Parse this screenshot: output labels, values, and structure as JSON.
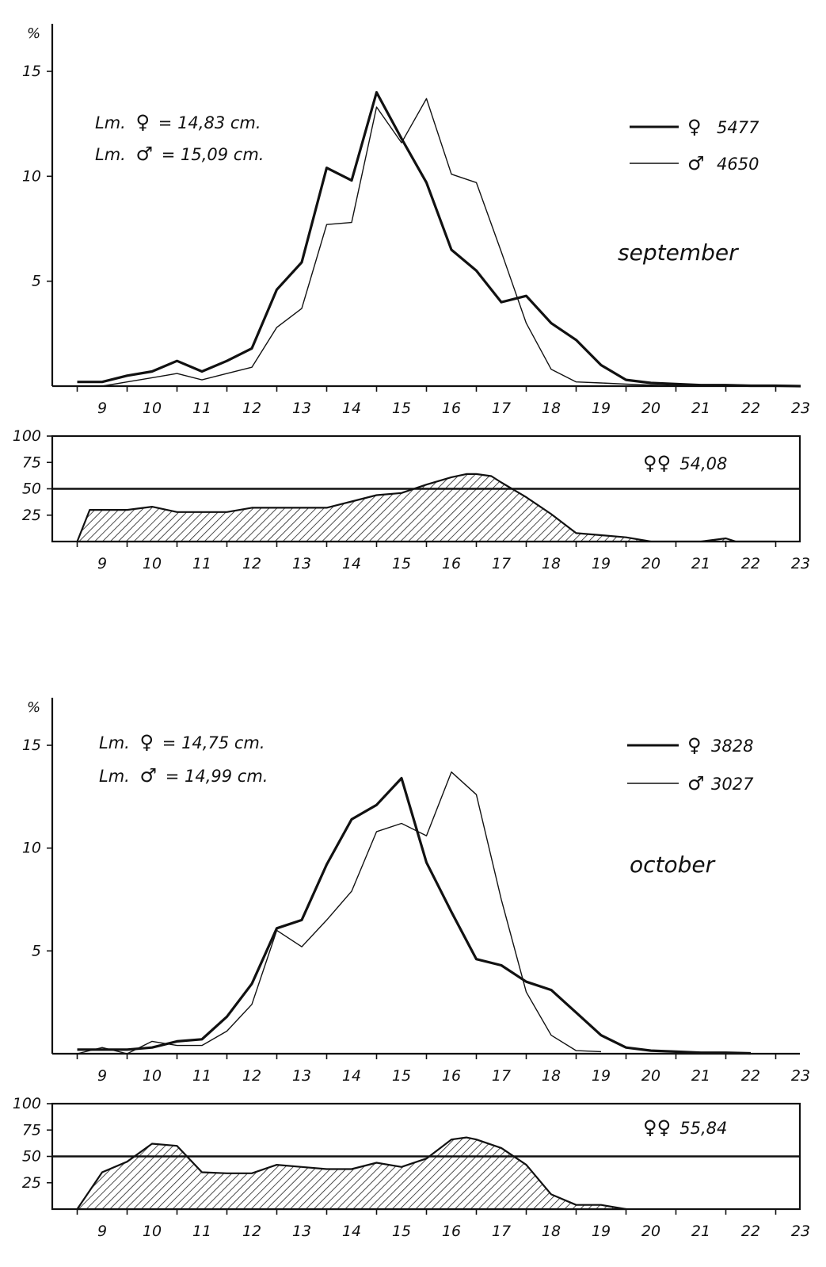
{
  "chart_data": [
    {
      "type": "line",
      "title": "",
      "month_label": "september",
      "ylabel": "%",
      "xlabel": "",
      "ylim": [
        0,
        15
      ],
      "xlim": [
        8,
        23
      ],
      "y_ticks": [
        "5",
        "10",
        "15"
      ],
      "x_ticks": [
        "9",
        "10",
        "11",
        "12",
        "13",
        "14",
        "15",
        "16",
        "17",
        "18",
        "19",
        "20",
        "21",
        "22",
        "23"
      ],
      "notes": [
        {
          "prefix": "Lm.",
          "symbol": "♀",
          "text": "= 14,83 cm."
        },
        {
          "prefix": "Lm.",
          "symbol": "♂",
          "text": "= 15,09 cm."
        }
      ],
      "legend": [
        {
          "symbol": "♀",
          "count": "5477",
          "style": "thick"
        },
        {
          "symbol": "♂",
          "count": "4650",
          "style": "thin"
        }
      ],
      "series": [
        {
          "style": "thick",
          "x": [
            8.5,
            9,
            9.5,
            10,
            10.5,
            11,
            11.5,
            12,
            12.5,
            13,
            13.5,
            14,
            14.5,
            15,
            15.5,
            16,
            16.5,
            17,
            17.5,
            18,
            18.5,
            19,
            19.5,
            20,
            20.5,
            21,
            21.5,
            22,
            22.5,
            23
          ],
          "y": [
            0.2,
            0.2,
            0.5,
            0.7,
            1.2,
            0.7,
            1.2,
            1.8,
            4.6,
            5.9,
            10.4,
            9.8,
            14.0,
            11.8,
            9.7,
            6.5,
            5.5,
            4.0,
            4.3,
            3.0,
            2.2,
            1.0,
            0.3,
            0.15,
            0.1,
            0.05,
            0.05,
            0.02,
            0.02,
            0
          ]
        },
        {
          "style": "thin",
          "x": [
            8.5,
            9,
            9.5,
            10,
            10.5,
            11,
            11.5,
            12,
            12.5,
            13,
            13.5,
            14,
            14.5,
            15,
            15.5,
            16,
            16.5,
            17,
            17.5,
            18,
            18.5,
            19,
            19.5,
            20,
            20.5,
            21,
            21.5,
            22,
            22.5,
            23
          ],
          "y": [
            0,
            0,
            0.2,
            0.4,
            0.6,
            0.3,
            0.6,
            0.9,
            2.8,
            3.7,
            7.7,
            7.8,
            13.3,
            11.6,
            13.7,
            10.1,
            9.7,
            6.4,
            3.0,
            0.8,
            0.2,
            0.15,
            0.1,
            0.05,
            0.02,
            0.02,
            0,
            0,
            0,
            0
          ]
        }
      ]
    },
    {
      "type": "area",
      "title": "",
      "ylabel": "",
      "xlabel": "",
      "ylim": [
        0,
        100
      ],
      "xlim": [
        8,
        23
      ],
      "y_ticks": [
        "25",
        "50",
        "75",
        "100"
      ],
      "x_ticks": [
        "9",
        "10",
        "11",
        "12",
        "13",
        "14",
        "15",
        "16",
        "17",
        "18",
        "19",
        "20",
        "21",
        "22",
        "23"
      ],
      "reference_line": 50,
      "label": {
        "symbols": "♀♀",
        "value": "54,08"
      },
      "series": [
        {
          "x": [
            8.5,
            8.75,
            9,
            9.5,
            10,
            10.5,
            11,
            11.5,
            12,
            12.5,
            13,
            13.5,
            14,
            14.5,
            15,
            15.5,
            16,
            16.3,
            16.5,
            16.8,
            17,
            17.5,
            18,
            18.5,
            19,
            19.5,
            20,
            20.5,
            21,
            21.5,
            21.7,
            22,
            22.5
          ],
          "y": [
            0,
            30,
            30,
            30,
            33,
            28,
            28,
            28,
            32,
            32,
            32,
            32,
            38,
            44,
            46,
            54,
            61,
            64,
            64,
            62,
            56,
            42,
            26,
            8,
            6,
            4,
            0,
            0,
            0,
            3,
            0,
            0,
            0
          ]
        }
      ]
    },
    {
      "type": "line",
      "title": "",
      "month_label": "october",
      "ylabel": "%",
      "xlabel": "",
      "ylim": [
        0,
        15
      ],
      "xlim": [
        8,
        23
      ],
      "y_ticks": [
        "5",
        "10",
        "15"
      ],
      "x_ticks": [
        "9",
        "10",
        "11",
        "12",
        "13",
        "14",
        "15",
        "16",
        "17",
        "18",
        "19",
        "20",
        "21",
        "22",
        "23"
      ],
      "notes": [
        {
          "prefix": "Lm.",
          "symbol": "♀",
          "text": "= 14,75 cm."
        },
        {
          "prefix": "Lm.",
          "symbol": "♂",
          "text": "= 14,99 cm."
        }
      ],
      "legend": [
        {
          "symbol": "♀",
          "count": "3828",
          "style": "thick"
        },
        {
          "symbol": "♂",
          "count": "3027",
          "style": "thin"
        }
      ],
      "series": [
        {
          "style": "thick",
          "x": [
            8.5,
            9,
            9.5,
            10,
            10.5,
            11,
            11.5,
            12,
            12.5,
            13,
            13.5,
            14,
            14.5,
            15,
            15.5,
            16,
            16.5,
            17,
            17.5,
            18,
            18.5,
            19,
            19.5,
            20,
            20.5,
            21,
            21.5,
            22
          ],
          "y": [
            0.2,
            0.2,
            0.2,
            0.3,
            0.6,
            0.7,
            1.8,
            3.4,
            6.1,
            6.5,
            9.2,
            11.4,
            12.1,
            13.4,
            9.3,
            6.9,
            4.6,
            4.3,
            3.5,
            3.1,
            2.0,
            0.9,
            0.3,
            0.15,
            0.1,
            0.05,
            0.05,
            0.02
          ]
        },
        {
          "style": "thin",
          "x": [
            8.5,
            9,
            9.5,
            10,
            10.5,
            11,
            11.5,
            12,
            12.5,
            13,
            13.5,
            14,
            14.5,
            15,
            15.5,
            16,
            16.5,
            17,
            17.5,
            18,
            18.5,
            19
          ],
          "y": [
            0,
            0.3,
            0,
            0.6,
            0.4,
            0.4,
            1.1,
            2.4,
            6.0,
            5.2,
            6.5,
            7.9,
            10.8,
            11.2,
            10.6,
            13.7,
            12.6,
            7.5,
            3.0,
            0.9,
            0.15,
            0.1
          ]
        }
      ]
    },
    {
      "type": "area",
      "title": "",
      "ylabel": "",
      "xlabel": "",
      "ylim": [
        0,
        100
      ],
      "xlim": [
        8,
        23
      ],
      "y_ticks": [
        "25",
        "50",
        "75",
        "100"
      ],
      "x_ticks": [
        "9",
        "10",
        "11",
        "12",
        "13",
        "14",
        "15",
        "16",
        "17",
        "18",
        "19",
        "20",
        "21",
        "22",
        "23"
      ],
      "reference_line": 50,
      "label": {
        "symbols": "♀♀",
        "value": "55,84"
      },
      "series": [
        {
          "x": [
            8.5,
            9,
            9.5,
            10,
            10.5,
            11,
            11.5,
            12,
            12.5,
            13,
            13.5,
            14,
            14.5,
            15,
            15.5,
            16,
            16.3,
            16.5,
            17,
            17.5,
            18,
            18.5,
            19,
            19.5
          ],
          "y": [
            0,
            35,
            45,
            62,
            60,
            35,
            34,
            34,
            42,
            40,
            38,
            38,
            44,
            40,
            48,
            66,
            68,
            66,
            58,
            42,
            14,
            4,
            4,
            0
          ]
        }
      ]
    }
  ]
}
